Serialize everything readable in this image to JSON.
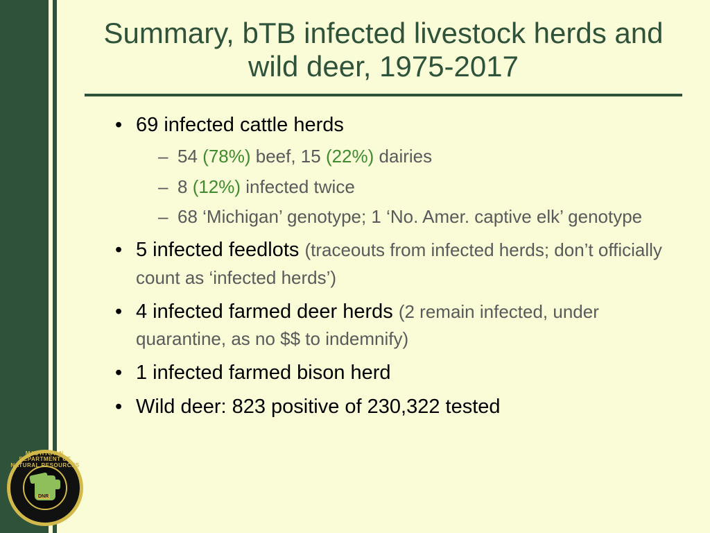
{
  "title": "Summary, bTB infected livestock herds and wild deer, 1975-2017",
  "bullets": {
    "cattle": {
      "main": "69 infected cattle herds",
      "sub1_a": "54 ",
      "sub1_pct1": "(78%)",
      "sub1_b": " beef, 15 ",
      "sub1_pct2": "(22%)",
      "sub1_c": " dairies",
      "sub2_a": "8 ",
      "sub2_pct": "(12%)",
      "sub2_b": " infected twice",
      "sub3": "68 ‘Michigan’ genotype; 1 ‘No. Amer. captive elk’ genotype"
    },
    "feedlots": {
      "main": "5 infected feedlots ",
      "note": "(traceouts from infected herds; don’t officially count as ‘infected herds’)"
    },
    "deerherds": {
      "main": "4 infected farmed deer herds ",
      "note": "(2 remain infected, under quarantine, as no $$ to indemnify)"
    },
    "bison": "1 infected farmed bison herd",
    "wild": "Wild deer: 823 positive of 230,322 tested"
  },
  "logo": {
    "top": "DEPARTMENT OF NATURAL RESOURCES",
    "bottom": "MICHIGAN",
    "tag": "DNR"
  },
  "colors": {
    "bg": "#fafbd7",
    "dark_green": "#2e533a",
    "percent_green": "#3f8b2f",
    "subtext_gray": "#5a5a5a",
    "logo_gold": "#d2b94a",
    "logo_black": "#111111",
    "mitten_green": "#8fbf5a"
  }
}
